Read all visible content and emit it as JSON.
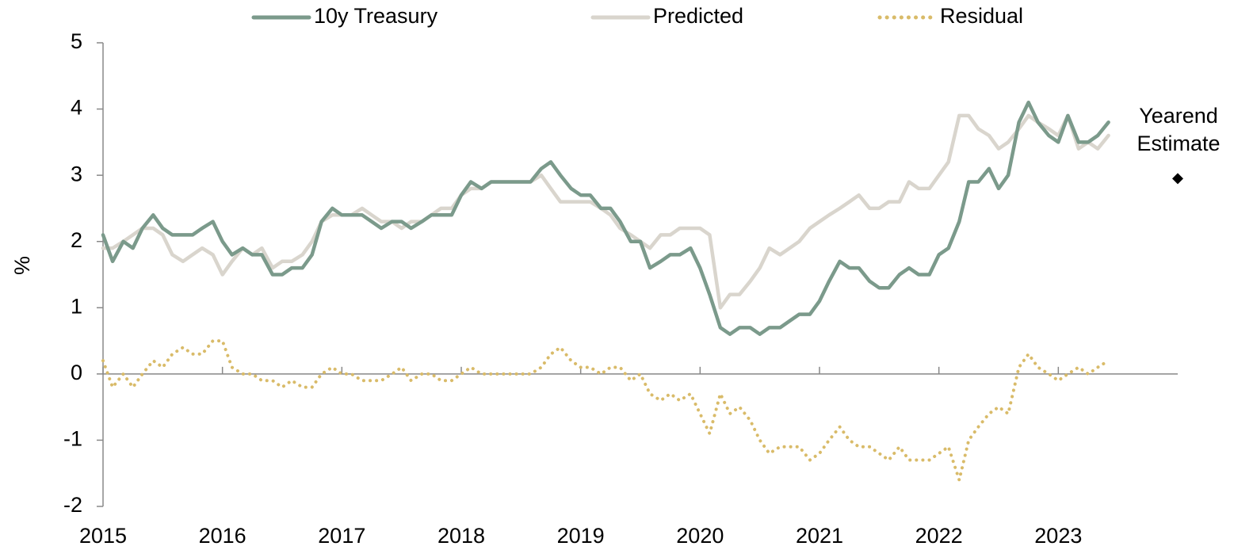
{
  "chart_data": {
    "type": "line",
    "x": [
      2015.0,
      2015.08,
      2015.17,
      2015.25,
      2015.33,
      2015.42,
      2015.5,
      2015.58,
      2015.67,
      2015.75,
      2015.83,
      2015.92,
      2016.0,
      2016.08,
      2016.17,
      2016.25,
      2016.33,
      2016.42,
      2016.5,
      2016.58,
      2016.67,
      2016.75,
      2016.83,
      2016.92,
      2017.0,
      2017.08,
      2017.17,
      2017.25,
      2017.33,
      2017.42,
      2017.5,
      2017.58,
      2017.67,
      2017.75,
      2017.83,
      2017.92,
      2018.0,
      2018.08,
      2018.17,
      2018.25,
      2018.33,
      2018.42,
      2018.5,
      2018.58,
      2018.67,
      2018.75,
      2018.83,
      2018.92,
      2019.0,
      2019.08,
      2019.17,
      2019.25,
      2019.33,
      2019.42,
      2019.5,
      2019.58,
      2019.67,
      2019.75,
      2019.83,
      2019.92,
      2020.0,
      2020.08,
      2020.17,
      2020.25,
      2020.33,
      2020.42,
      2020.5,
      2020.58,
      2020.67,
      2020.75,
      2020.83,
      2020.92,
      2021.0,
      2021.08,
      2021.17,
      2021.25,
      2021.33,
      2021.42,
      2021.5,
      2021.58,
      2021.67,
      2021.75,
      2021.83,
      2021.92,
      2022.0,
      2022.08,
      2022.17,
      2022.25,
      2022.33,
      2022.42,
      2022.5,
      2022.58,
      2022.67,
      2022.75,
      2022.83,
      2022.92,
      2023.0,
      2023.08,
      2023.17,
      2023.25,
      2023.33,
      2023.42
    ],
    "series": [
      {
        "name": "10y Treasury",
        "color": "#7b9a8b",
        "style": "solid",
        "values": [
          2.1,
          1.7,
          2.0,
          1.9,
          2.2,
          2.4,
          2.2,
          2.1,
          2.1,
          2.1,
          2.2,
          2.3,
          2.0,
          1.8,
          1.9,
          1.8,
          1.8,
          1.5,
          1.5,
          1.6,
          1.6,
          1.8,
          2.3,
          2.5,
          2.4,
          2.4,
          2.4,
          2.3,
          2.2,
          2.3,
          2.3,
          2.2,
          2.3,
          2.4,
          2.4,
          2.4,
          2.7,
          2.9,
          2.8,
          2.9,
          2.9,
          2.9,
          2.9,
          2.9,
          3.1,
          3.2,
          3.0,
          2.8,
          2.7,
          2.7,
          2.5,
          2.5,
          2.3,
          2.0,
          2.0,
          1.6,
          1.7,
          1.8,
          1.8,
          1.9,
          1.6,
          1.2,
          0.7,
          0.6,
          0.7,
          0.7,
          0.6,
          0.7,
          0.7,
          0.8,
          0.9,
          0.9,
          1.1,
          1.4,
          1.7,
          1.6,
          1.6,
          1.4,
          1.3,
          1.3,
          1.5,
          1.6,
          1.5,
          1.5,
          1.8,
          1.9,
          2.3,
          2.9,
          2.9,
          3.1,
          2.8,
          3.0,
          3.8,
          4.1,
          3.8,
          3.6,
          3.5,
          3.9,
          3.5,
          3.5,
          3.6,
          3.8
        ]
      },
      {
        "name": "Predicted",
        "color": "#d9d5cd",
        "style": "solid",
        "values": [
          1.9,
          1.9,
          2.0,
          2.1,
          2.2,
          2.2,
          2.1,
          1.8,
          1.7,
          1.8,
          1.9,
          1.8,
          1.5,
          1.7,
          1.9,
          1.8,
          1.9,
          1.6,
          1.7,
          1.7,
          1.8,
          2.0,
          2.3,
          2.4,
          2.4,
          2.4,
          2.5,
          2.4,
          2.3,
          2.3,
          2.2,
          2.3,
          2.3,
          2.4,
          2.5,
          2.5,
          2.7,
          2.8,
          2.8,
          2.9,
          2.9,
          2.9,
          2.9,
          2.9,
          3.0,
          2.8,
          2.6,
          2.6,
          2.6,
          2.6,
          2.5,
          2.4,
          2.2,
          2.1,
          2.0,
          1.9,
          2.1,
          2.1,
          2.2,
          2.2,
          2.2,
          2.1,
          1.0,
          1.2,
          1.2,
          1.4,
          1.6,
          1.9,
          1.8,
          1.9,
          2.0,
          2.2,
          2.3,
          2.4,
          2.5,
          2.6,
          2.7,
          2.5,
          2.5,
          2.6,
          2.6,
          2.9,
          2.8,
          2.8,
          3.0,
          3.2,
          3.9,
          3.9,
          3.7,
          3.6,
          3.4,
          3.5,
          3.7,
          3.9,
          3.8,
          3.7,
          3.6,
          3.9,
          3.4,
          3.5,
          3.4,
          3.6
        ]
      },
      {
        "name": "Residual",
        "color": "#d9bb69",
        "style": "dotted",
        "values": [
          0.2,
          -0.2,
          0.0,
          -0.2,
          0.0,
          0.2,
          0.1,
          0.3,
          0.4,
          0.3,
          0.3,
          0.5,
          0.5,
          0.1,
          0.0,
          0.0,
          -0.1,
          -0.1,
          -0.2,
          -0.1,
          -0.2,
          -0.2,
          0.0,
          0.1,
          0.0,
          0.0,
          -0.1,
          -0.1,
          -0.1,
          0.0,
          0.1,
          -0.1,
          0.0,
          0.0,
          -0.1,
          -0.1,
          0.0,
          0.1,
          0.0,
          0.0,
          0.0,
          0.0,
          0.0,
          0.0,
          0.1,
          0.3,
          0.4,
          0.2,
          0.1,
          0.1,
          0.0,
          0.1,
          0.1,
          -0.1,
          0.0,
          -0.3,
          -0.4,
          -0.3,
          -0.4,
          -0.3,
          -0.6,
          -0.9,
          -0.3,
          -0.6,
          -0.5,
          -0.7,
          -1.0,
          -1.2,
          -1.1,
          -1.1,
          -1.1,
          -1.3,
          -1.2,
          -1.0,
          -0.8,
          -1.0,
          -1.1,
          -1.1,
          -1.2,
          -1.3,
          -1.1,
          -1.3,
          -1.3,
          -1.3,
          -1.2,
          -1.1,
          -1.6,
          -1.0,
          -0.8,
          -0.6,
          -0.5,
          -0.6,
          0.1,
          0.3,
          0.1,
          0.0,
          -0.1,
          0.0,
          0.1,
          0.0,
          0.1,
          0.2
        ]
      }
    ],
    "ylabel": "%",
    "xlim": [
      2015,
      2024
    ],
    "xticks": [
      2015,
      2016,
      2017,
      2018,
      2019,
      2020,
      2021,
      2022,
      2023
    ],
    "ylim": [
      -2,
      5
    ],
    "yticks": [
      -2,
      -1,
      0,
      1,
      2,
      3,
      4,
      5
    ],
    "annotation": {
      "text_lines": [
        "Yearend",
        "Estimate"
      ],
      "x": 2024,
      "y": 2.95,
      "color": "#000000"
    },
    "legend": "top"
  }
}
